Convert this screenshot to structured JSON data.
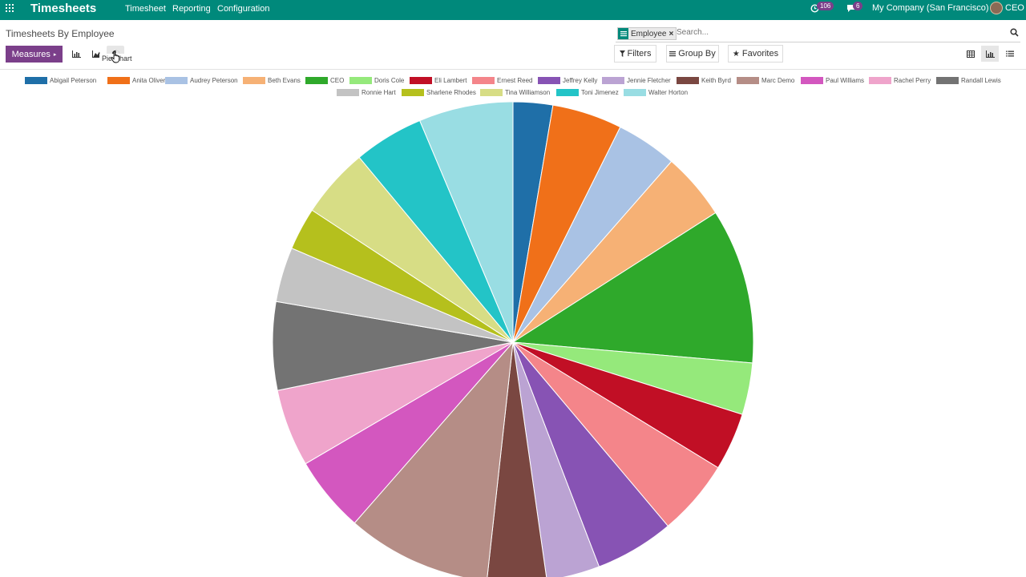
{
  "topbar": {
    "app_name": "Timesheets",
    "menu": [
      "Timesheet",
      "Reporting",
      "Configuration"
    ],
    "activity_count": "106",
    "message_count": "6",
    "company": "My Company (San Francisco)",
    "user": "CEO"
  },
  "control_panel": {
    "breadcrumb": "Timesheets By Employee",
    "facet_value": "Employee",
    "search_placeholder": "Search...",
    "measures_label": "Measures",
    "filters_label": "Filters",
    "groupby_label": "Group By",
    "favorites_label": "Favorites",
    "tooltip": "Pie Chart"
  },
  "colors": {
    "brand": "#00897b",
    "accent": "#7b3f8a"
  },
  "chart_data": {
    "type": "pie",
    "legend_position": "top",
    "series": [
      {
        "name": "Abigail Peterson",
        "color": "#1f6fa8",
        "value": 2.6
      },
      {
        "name": "Anita Oliver",
        "color": "#f07019",
        "value": 4.6
      },
      {
        "name": "Audrey Peterson",
        "color": "#a9c2e4",
        "value": 4.0
      },
      {
        "name": "Beth Evans",
        "color": "#f6b175",
        "value": 4.4
      },
      {
        "name": "CEO",
        "color": "#2fa92b",
        "value": 10.2
      },
      {
        "name": "Doris Cole",
        "color": "#95e97b",
        "value": 3.4
      },
      {
        "name": "Eli Lambert",
        "color": "#c10f25",
        "value": 3.8
      },
      {
        "name": "Ernest Reed",
        "color": "#f4858a",
        "value": 5.0
      },
      {
        "name": "Jeffrey Kelly",
        "color": "#8753b4",
        "value": 5.2
      },
      {
        "name": "Jennie Fletcher",
        "color": "#bba3d3",
        "value": 3.5
      },
      {
        "name": "Keith Byrd",
        "color": "#7a4741",
        "value": 3.9
      },
      {
        "name": "Marc Demo",
        "color": "#b58d86",
        "value": 9.5
      },
      {
        "name": "Paul Williams",
        "color": "#d357bf",
        "value": 5.0
      },
      {
        "name": "Rachel Perry",
        "color": "#efa4cb",
        "value": 5.1
      },
      {
        "name": "Randall Lewis",
        "color": "#737373",
        "value": 5.8
      },
      {
        "name": "Ronnie Hart",
        "color": "#c3c3c3",
        "value": 3.6
      },
      {
        "name": "Sharlene Rhodes",
        "color": "#b5c01d",
        "value": 2.8
      },
      {
        "name": "Tina Williamson",
        "color": "#d7dd85",
        "value": 4.6
      },
      {
        "name": "Toni Jimenez",
        "color": "#23c4c7",
        "value": 4.6
      },
      {
        "name": "Walter Horton",
        "color": "#99dde3",
        "value": 6.2
      }
    ]
  }
}
